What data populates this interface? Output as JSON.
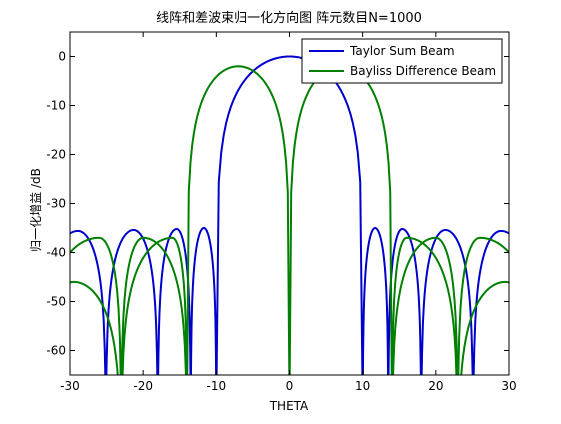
{
  "chart_data": {
    "type": "line",
    "title": "线阵和差波束归一化方向图 阵元数目N=1000",
    "xlabel": "THETA",
    "ylabel": "归一化增益 /dB",
    "xlim": [
      -30,
      30
    ],
    "ylim": [
      -65,
      5
    ],
    "xticks": [
      "-30",
      "-20",
      "-10",
      "0",
      "10",
      "20",
      "30"
    ],
    "yticks": [
      "0",
      "-10",
      "-20",
      "-30",
      "-40",
      "-50",
      "-60"
    ],
    "xtick_values": [
      -30,
      -20,
      -10,
      0,
      10,
      20,
      30
    ],
    "ytick_values": [
      0,
      -10,
      -20,
      -30,
      -40,
      -50,
      -60
    ],
    "grid": false,
    "legend_position": "top-right",
    "series": [
      {
        "name": "Taylor Sum Beam",
        "color": "#0000cc",
        "main_lobe": {
          "peak_x": 0,
          "peak_y": 0,
          "null_left": -10,
          "null_right": 10
        },
        "first_nulls": [
          -10,
          10
        ],
        "sidelobes": [
          {
            "x": -28.9,
            "y": -35.6
          },
          {
            "x": -25.1,
            "y": -64
          },
          {
            "x": -21.3,
            "y": -35.4
          },
          {
            "x": -18.0,
            "y": -64
          },
          {
            "x": -15.4,
            "y": -35.2
          },
          {
            "x": -13.5,
            "y": -64
          },
          {
            "x": -11.7,
            "y": -35.0
          },
          {
            "x": 11.7,
            "y": -35.0
          },
          {
            "x": 13.5,
            "y": -64
          },
          {
            "x": 15.4,
            "y": -35.2
          },
          {
            "x": 18.0,
            "y": -64
          },
          {
            "x": 21.3,
            "y": -35.4
          },
          {
            "x": 25.1,
            "y": -64
          },
          {
            "x": 28.9,
            "y": -35.6
          }
        ]
      },
      {
        "name": "Bayliss Difference Beam",
        "color": "#008000",
        "main_lobes": [
          {
            "peak_x": -5,
            "peak_y": -2,
            "null_left": -14,
            "null_right": 0
          },
          {
            "peak_x": 5,
            "peak_y": -2,
            "null_left": 0,
            "null_right": 14
          }
        ],
        "first_nulls": [
          -14,
          0,
          14
        ],
        "sidelobes": [
          {
            "x": -29.5,
            "y": -46
          },
          {
            "x": -26.0,
            "y": -37.0
          },
          {
            "x": -23.0,
            "y": -64
          },
          {
            "x": -20.0,
            "y": -37.0
          },
          {
            "x": -16.0,
            "y": -37.0
          },
          {
            "x": 16.0,
            "y": -37.0
          },
          {
            "x": 20.0,
            "y": -37.0
          },
          {
            "x": 23.0,
            "y": -64
          },
          {
            "x": 26.0,
            "y": -37.0
          },
          {
            "x": 29.5,
            "y": -46
          }
        ]
      }
    ]
  }
}
